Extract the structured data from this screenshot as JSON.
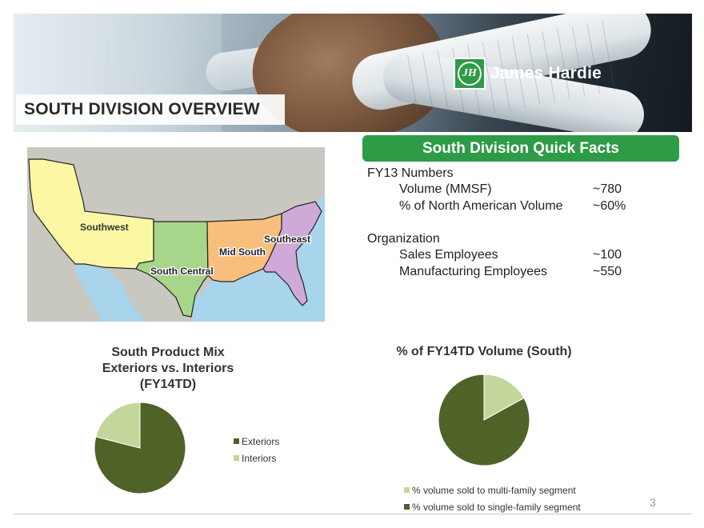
{
  "header": {
    "title": "SOUTH DIVISION OVERVIEW",
    "logo_monogram": "JH",
    "logo_text": "James Hardie"
  },
  "map": {
    "regions": [
      "Southwest",
      "South Central",
      "Mid South",
      "Southeast"
    ],
    "colors": {
      "Southwest": "#fbf7a4",
      "South Central": "#a7d58a",
      "Mid South": "#f8be7b",
      "Southeast": "#cfa9d8",
      "land": "#c8c8c0",
      "water": "#a8d4ec"
    }
  },
  "quick_facts": {
    "header": "South Division Quick Facts",
    "groups": [
      {
        "title": "FY13 Numbers",
        "rows": [
          {
            "label": "Volume (MMSF)",
            "value": "~780"
          },
          {
            "label": "% of North American Volume",
            "value": "~60%"
          }
        ]
      },
      {
        "title": "Organization",
        "rows": [
          {
            "label": "Sales Employees",
            "value": "~100"
          },
          {
            "label": "Manufacturing Employees",
            "value": "~550"
          }
        ]
      }
    ]
  },
  "chart_data": [
    {
      "type": "pie",
      "title_lines": [
        "South Product Mix",
        "Exteriors vs. Interiors",
        "(FY14TD)"
      ],
      "categories": [
        "Exteriors",
        "Interiors"
      ],
      "values": [
        79,
        21
      ],
      "colors": [
        "#4f6228",
        "#c3d69b"
      ],
      "legend_position": "right"
    },
    {
      "type": "pie",
      "title": "% of FY14TD Volume (South)",
      "categories": [
        "% volume sold to multi-family segment",
        "% volume sold to single-family segment"
      ],
      "values": [
        17,
        83
      ],
      "colors": [
        "#c3d69b",
        "#4f6228"
      ],
      "legend_position": "bottom"
    }
  ],
  "footer": {
    "page_number": "3"
  }
}
